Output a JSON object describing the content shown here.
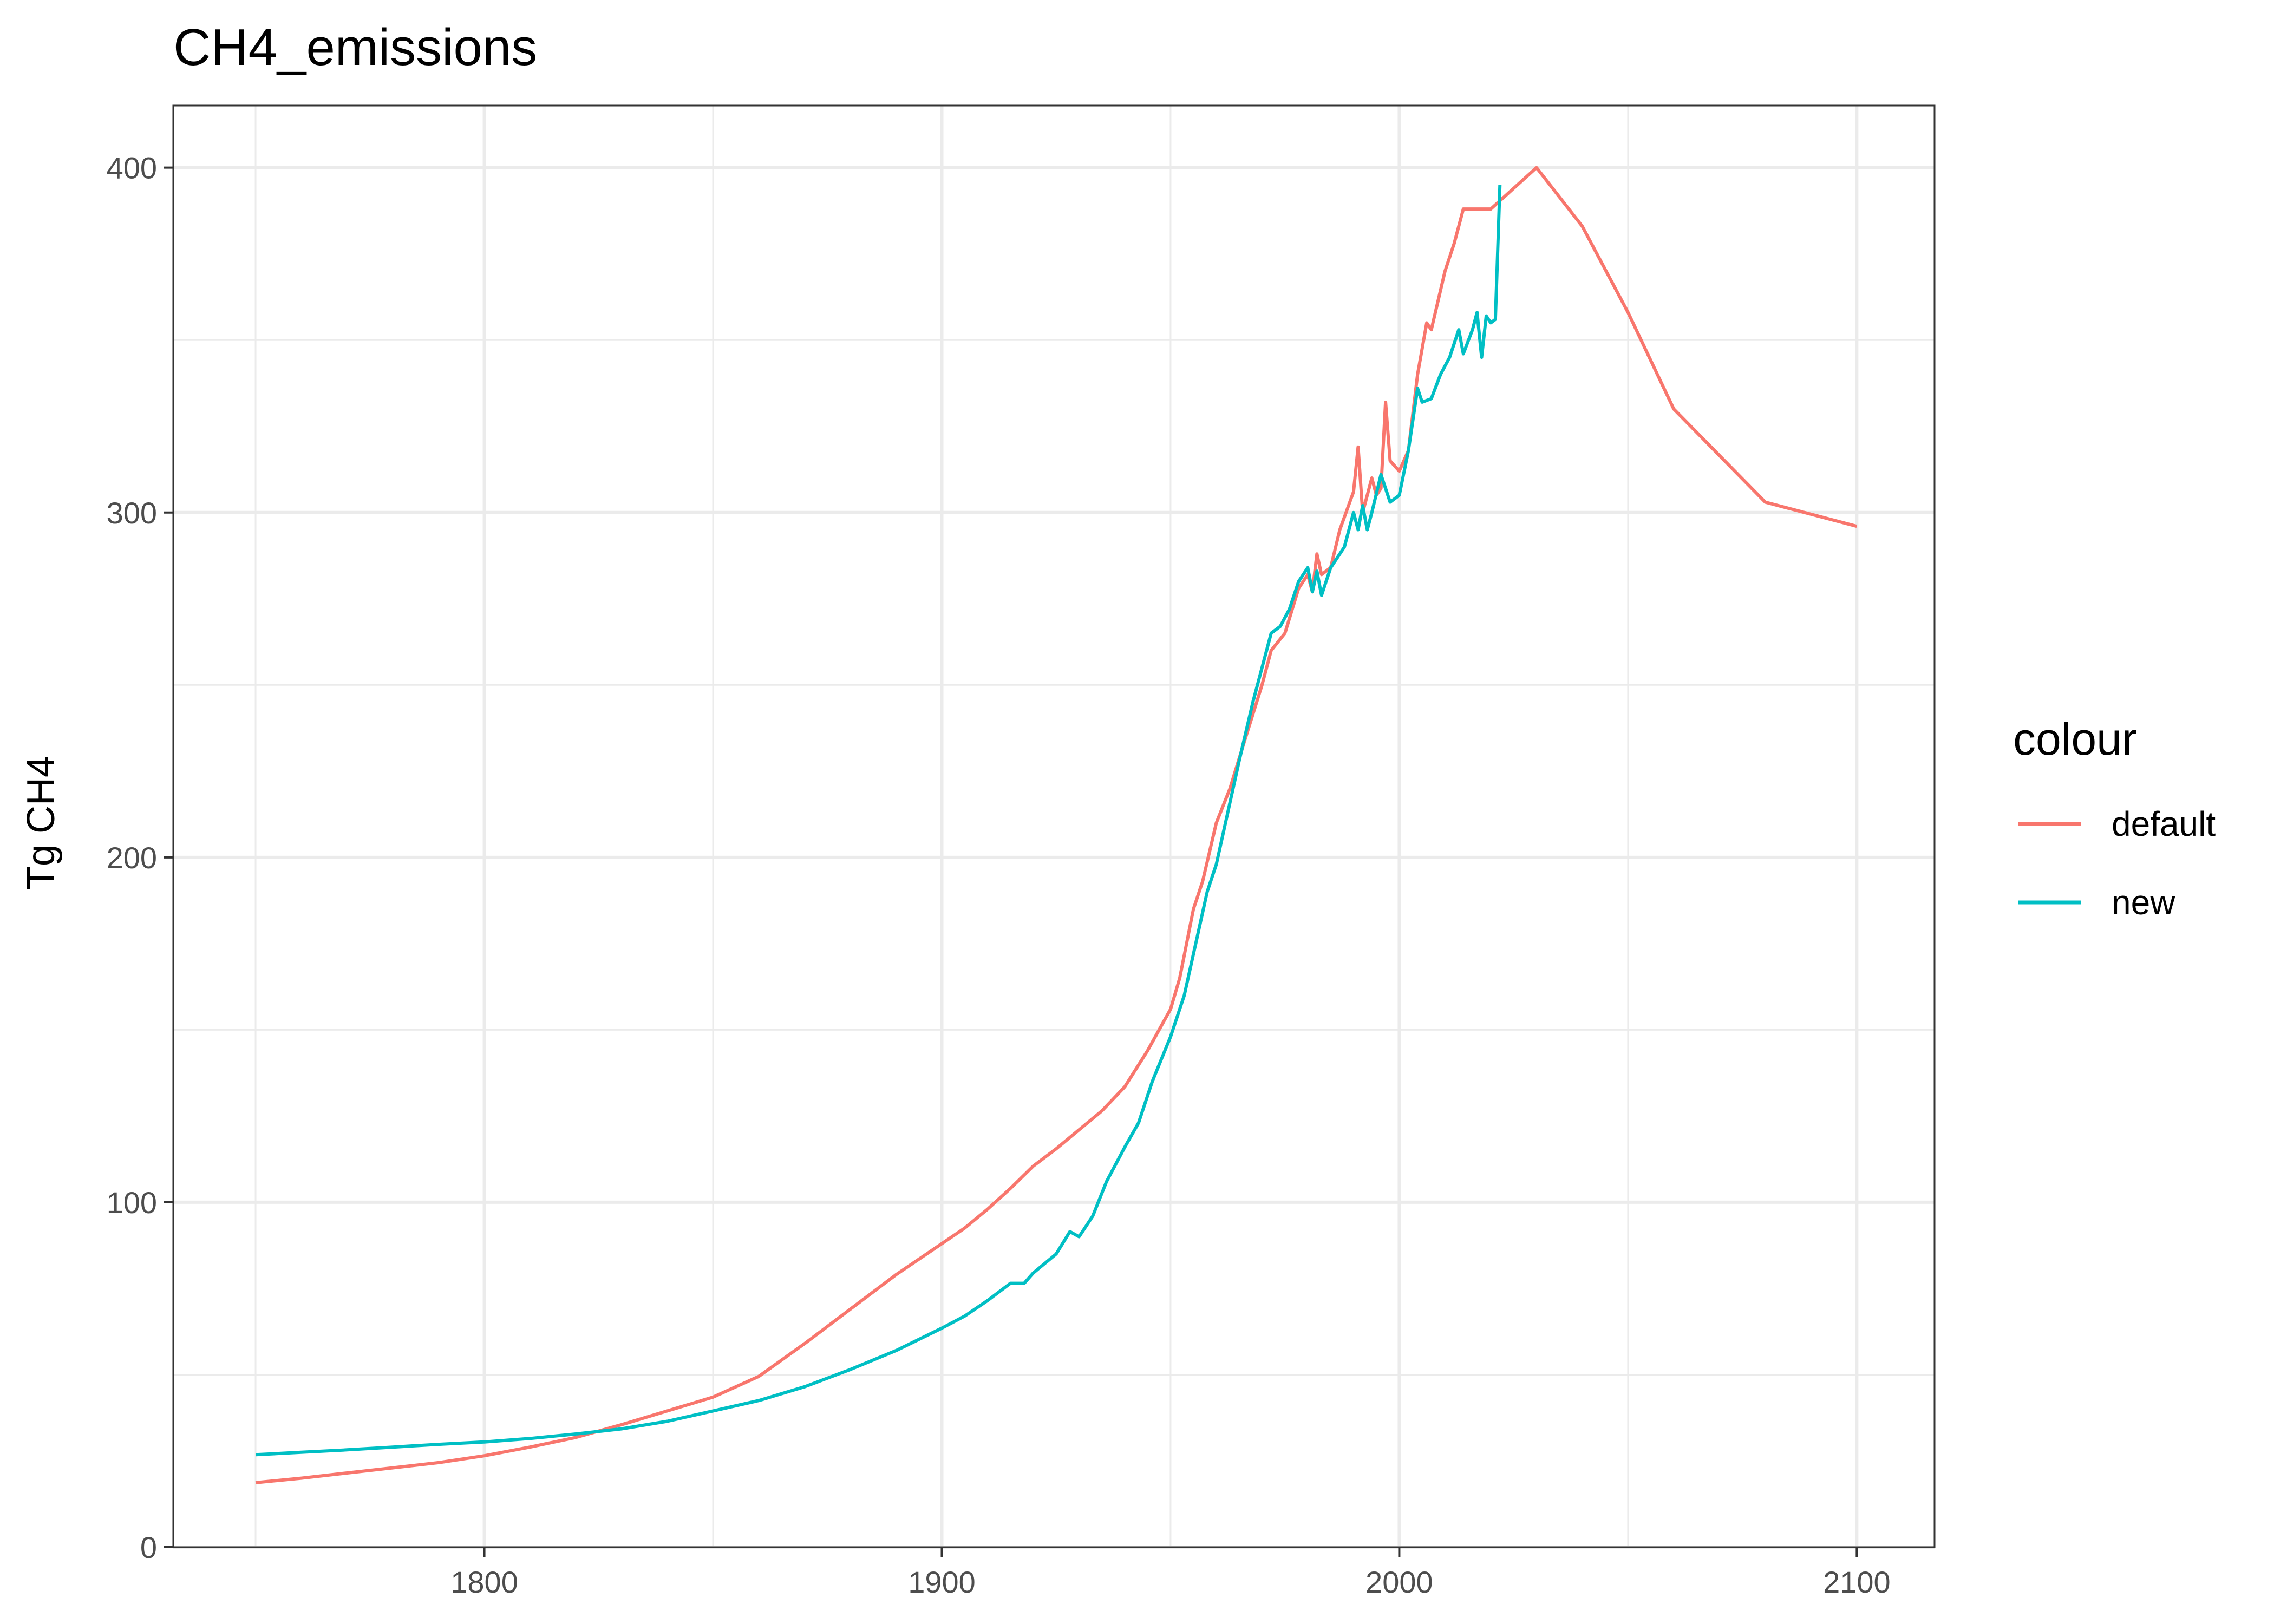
{
  "chart_data": {
    "type": "line",
    "title": "CH4_emissions",
    "xlabel": "",
    "ylabel": "Tg CH4",
    "xlim": [
      1732,
      2117
    ],
    "ylim": [
      0,
      418
    ],
    "x_ticks": [
      1800,
      1900,
      2000,
      2100
    ],
    "x_tick_labels": [
      "1800",
      "1900",
      "2000",
      "2100"
    ],
    "x_minor": [
      1750,
      1850,
      1950,
      2050
    ],
    "y_ticks": [
      0,
      100,
      200,
      300,
      400
    ],
    "y_tick_labels": [
      "0",
      "100",
      "200",
      "300",
      "400"
    ],
    "y_minor": [
      50,
      150,
      250,
      350
    ],
    "grid": true,
    "legend": {
      "title": "colour",
      "position": "right"
    },
    "series": [
      {
        "name": "default",
        "color": "#F8766D",
        "points": [
          [
            1750,
            18.7
          ],
          [
            1760,
            20
          ],
          [
            1770,
            21.5
          ],
          [
            1780,
            23
          ],
          [
            1790,
            24.5
          ],
          [
            1800,
            26.5
          ],
          [
            1810,
            29
          ],
          [
            1820,
            31.8
          ],
          [
            1830,
            35.5
          ],
          [
            1840,
            39.5
          ],
          [
            1850,
            43.5
          ],
          [
            1860,
            49.5
          ],
          [
            1870,
            59
          ],
          [
            1880,
            69
          ],
          [
            1890,
            79
          ],
          [
            1900,
            88
          ],
          [
            1905,
            92.5
          ],
          [
            1910,
            98
          ],
          [
            1915,
            104
          ],
          [
            1920,
            110.5
          ],
          [
            1925,
            115.5
          ],
          [
            1930,
            121
          ],
          [
            1935,
            126.5
          ],
          [
            1940,
            133.5
          ],
          [
            1945,
            144
          ],
          [
            1950,
            156
          ],
          [
            1952,
            165
          ],
          [
            1955,
            185
          ],
          [
            1957,
            193
          ],
          [
            1960,
            210
          ],
          [
            1963,
            220
          ],
          [
            1966,
            233
          ],
          [
            1970,
            250
          ],
          [
            1972,
            260
          ],
          [
            1975,
            265
          ],
          [
            1978,
            278
          ],
          [
            1980,
            282
          ],
          [
            1981,
            277
          ],
          [
            1982,
            288
          ],
          [
            1983,
            282
          ],
          [
            1985,
            284
          ],
          [
            1987,
            295
          ],
          [
            1990,
            306
          ],
          [
            1991,
            319
          ],
          [
            1992,
            300
          ],
          [
            1994,
            310
          ],
          [
            1995,
            305
          ],
          [
            1996,
            307
          ],
          [
            1997,
            332
          ],
          [
            1998,
            315
          ],
          [
            2000,
            312
          ],
          [
            2002,
            318
          ],
          [
            2004,
            340
          ],
          [
            2006,
            355
          ],
          [
            2007,
            353
          ],
          [
            2010,
            370
          ],
          [
            2012,
            378
          ],
          [
            2014,
            388
          ],
          [
            2020,
            388
          ],
          [
            2030,
            400
          ],
          [
            2040,
            383
          ],
          [
            2050,
            358
          ],
          [
            2060,
            330
          ],
          [
            2080,
            303
          ],
          [
            2100,
            296
          ]
        ]
      },
      {
        "name": "new",
        "color": "#00BFC4",
        "points": [
          [
            1750,
            26.8
          ],
          [
            1760,
            27.5
          ],
          [
            1770,
            28.2
          ],
          [
            1780,
            29
          ],
          [
            1790,
            29.8
          ],
          [
            1800,
            30.5
          ],
          [
            1810,
            31.5
          ],
          [
            1820,
            32.8
          ],
          [
            1830,
            34.3
          ],
          [
            1840,
            36.5
          ],
          [
            1850,
            39.5
          ],
          [
            1860,
            42.5
          ],
          [
            1870,
            46.5
          ],
          [
            1880,
            51.5
          ],
          [
            1890,
            57
          ],
          [
            1900,
            63.5
          ],
          [
            1905,
            67
          ],
          [
            1910,
            71.5
          ],
          [
            1915,
            76.5
          ],
          [
            1918,
            76.5
          ],
          [
            1920,
            79.5
          ],
          [
            1925,
            85
          ],
          [
            1928,
            91.5
          ],
          [
            1930,
            90
          ],
          [
            1933,
            96
          ],
          [
            1936,
            106
          ],
          [
            1940,
            116
          ],
          [
            1943,
            123
          ],
          [
            1946,
            135
          ],
          [
            1950,
            148
          ],
          [
            1953,
            160
          ],
          [
            1956,
            178
          ],
          [
            1958,
            190
          ],
          [
            1960,
            198
          ],
          [
            1962,
            210
          ],
          [
            1965,
            228
          ],
          [
            1968,
            245
          ],
          [
            1970,
            255
          ],
          [
            1972,
            265
          ],
          [
            1974,
            267
          ],
          [
            1976,
            272
          ],
          [
            1978,
            280
          ],
          [
            1980,
            284
          ],
          [
            1981,
            277
          ],
          [
            1982,
            283
          ],
          [
            1983,
            276
          ],
          [
            1985,
            284
          ],
          [
            1988,
            290
          ],
          [
            1990,
            300
          ],
          [
            1991,
            295
          ],
          [
            1992,
            302
          ],
          [
            1993,
            295
          ],
          [
            1994,
            300
          ],
          [
            1996,
            311
          ],
          [
            1998,
            303
          ],
          [
            2000,
            305
          ],
          [
            2002,
            318
          ],
          [
            2004,
            336
          ],
          [
            2005,
            332
          ],
          [
            2007,
            333
          ],
          [
            2009,
            340
          ],
          [
            2011,
            345
          ],
          [
            2013,
            353
          ],
          [
            2014,
            346
          ],
          [
            2016,
            353
          ],
          [
            2017,
            358
          ],
          [
            2018,
            345
          ],
          [
            2019,
            357
          ],
          [
            2020,
            355
          ],
          [
            2021,
            356
          ],
          [
            2022,
            395
          ]
        ]
      }
    ]
  }
}
